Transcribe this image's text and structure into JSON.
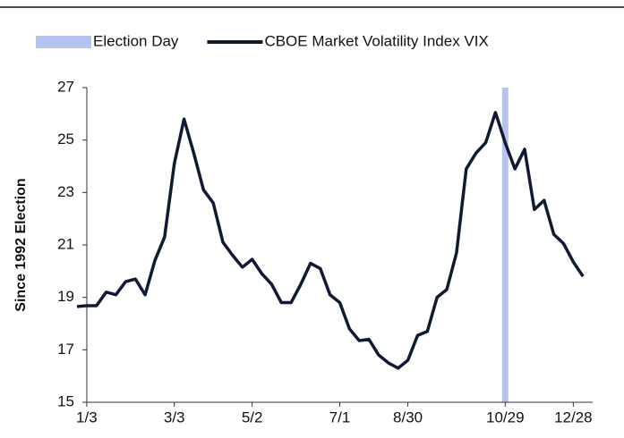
{
  "chart_data": {
    "type": "line",
    "y_label": "Since 1992 Election",
    "categories": [
      null,
      "1/3",
      null,
      null,
      null,
      null,
      null,
      null,
      null,
      null,
      "3/3",
      null,
      null,
      null,
      null,
      null,
      null,
      null,
      "5/2",
      null,
      null,
      null,
      null,
      null,
      null,
      null,
      null,
      "7/1",
      null,
      null,
      null,
      null,
      null,
      null,
      "8/30",
      null,
      null,
      null,
      null,
      null,
      null,
      null,
      null,
      null,
      "10/29",
      null,
      null,
      null,
      null,
      null,
      null,
      "12/28",
      null
    ],
    "series": [
      {
        "name": "Election Day",
        "type": "bar",
        "color": "#b4c3ef",
        "values": [
          null,
          null,
          null,
          null,
          null,
          null,
          null,
          null,
          null,
          null,
          null,
          null,
          null,
          null,
          null,
          null,
          null,
          null,
          null,
          null,
          null,
          null,
          null,
          null,
          null,
          null,
          null,
          null,
          null,
          null,
          null,
          null,
          null,
          null,
          null,
          null,
          null,
          null,
          null,
          null,
          null,
          null,
          null,
          null,
          27,
          null,
          null,
          null,
          null,
          null,
          null,
          null,
          null
        ]
      },
      {
        "name": "CBOE Market Volatility Index VIX",
        "type": "line",
        "color": "#111a33",
        "values": [
          18.65,
          18.68,
          18.68,
          19.2,
          19.1,
          19.6,
          19.7,
          19.1,
          20.4,
          21.3,
          24.1,
          25.8,
          24.5,
          23.1,
          22.6,
          21.1,
          20.6,
          20.15,
          20.45,
          19.9,
          19.5,
          18.8,
          18.8,
          19.5,
          20.3,
          20.1,
          19.1,
          18.8,
          17.8,
          17.35,
          17.4,
          16.8,
          16.5,
          16.3,
          16.6,
          17.55,
          17.7,
          19.0,
          19.3,
          20.7,
          23.9,
          24.5,
          24.9,
          26.05,
          24.9,
          23.9,
          24.65,
          22.35,
          22.7,
          21.4,
          21.05,
          20.35,
          19.8
        ]
      }
    ],
    "ylim": [
      15,
      27
    ],
    "yticks": [
      15,
      17,
      19,
      21,
      23,
      25,
      27
    ],
    "grid": false
  }
}
